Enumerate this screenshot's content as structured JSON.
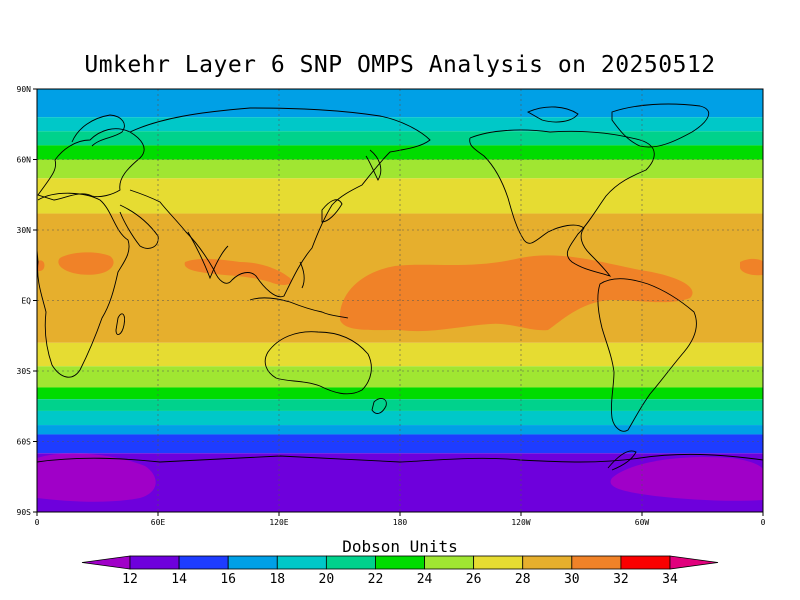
{
  "title": "Umkehr Layer 6 SNP OMPS Analysis on 20250512",
  "lon_ticks": [
    "0",
    "60E",
    "120E",
    "180",
    "120W",
    "60W",
    "0"
  ],
  "lat_ticks": [
    "90N",
    "60N",
    "30N",
    "EQ",
    "30S",
    "60S",
    "90S"
  ],
  "colorbar": {
    "title": "Dobson Units",
    "levels": [
      "12",
      "14",
      "16",
      "18",
      "20",
      "22",
      "24",
      "26",
      "28",
      "30",
      "32",
      "34"
    ],
    "colors": [
      "#a000c8",
      "#6e00dc",
      "#1e3cff",
      "#00a0e6",
      "#00c8c8",
      "#00d28c",
      "#00dc00",
      "#a0e632",
      "#e6dc32",
      "#e6af2d",
      "#f08228",
      "#fa0000",
      "#e1007d"
    ]
  },
  "chart_data": {
    "type": "heatmap",
    "title": "Umkehr Layer 6 SNP OMPS Analysis on 20250512",
    "variable": "Dobson Units",
    "x_ticks": [
      "0",
      "60E",
      "120E",
      "180",
      "120W",
      "60W",
      "0"
    ],
    "y_ticks": [
      "90N",
      "60N",
      "30N",
      "EQ",
      "30S",
      "60S",
      "90S"
    ],
    "xlim": [
      0,
      360
    ],
    "ylim": [
      -90,
      90
    ],
    "grid": true,
    "zonal_bands": [
      {
        "lat_from": 90,
        "lat_to": 78,
        "value": 17
      },
      {
        "lat_from": 78,
        "lat_to": 72,
        "value": 19
      },
      {
        "lat_from": 72,
        "lat_to": 66,
        "value": 21
      },
      {
        "lat_from": 66,
        "lat_to": 60,
        "value": 23
      },
      {
        "lat_from": 60,
        "lat_to": 52,
        "value": 25
      },
      {
        "lat_from": 52,
        "lat_to": 37,
        "value": 27
      },
      {
        "lat_from": 37,
        "lat_to": -18,
        "value": 29
      },
      {
        "lat_from": -18,
        "lat_to": -28,
        "value": 27
      },
      {
        "lat_from": -28,
        "lat_to": -37,
        "value": 25
      },
      {
        "lat_from": -37,
        "lat_to": -42,
        "value": 23
      },
      {
        "lat_from": -42,
        "lat_to": -47,
        "value": 21
      },
      {
        "lat_from": -47,
        "lat_to": -53,
        "value": 19
      },
      {
        "lat_from": -53,
        "lat_to": -57,
        "value": 17
      },
      {
        "lat_from": -57,
        "lat_to": -65,
        "value": 15
      },
      {
        "lat_from": -65,
        "lat_to": -90,
        "value": 13
      }
    ],
    "maxima": [
      {
        "region": "Pacific to Atlantic equatorial",
        "value": 31
      },
      {
        "region": "Central America / Caribbean",
        "value": 31
      },
      {
        "region": "South Asia / East Asia",
        "value": 31
      },
      {
        "region": "Africa west coast",
        "value": 31
      }
    ],
    "minima": [
      {
        "region": "Antarctica near 0-50E",
        "value": 11
      },
      {
        "region": "Antarctica near 60W-0",
        "value": 11
      }
    ]
  }
}
